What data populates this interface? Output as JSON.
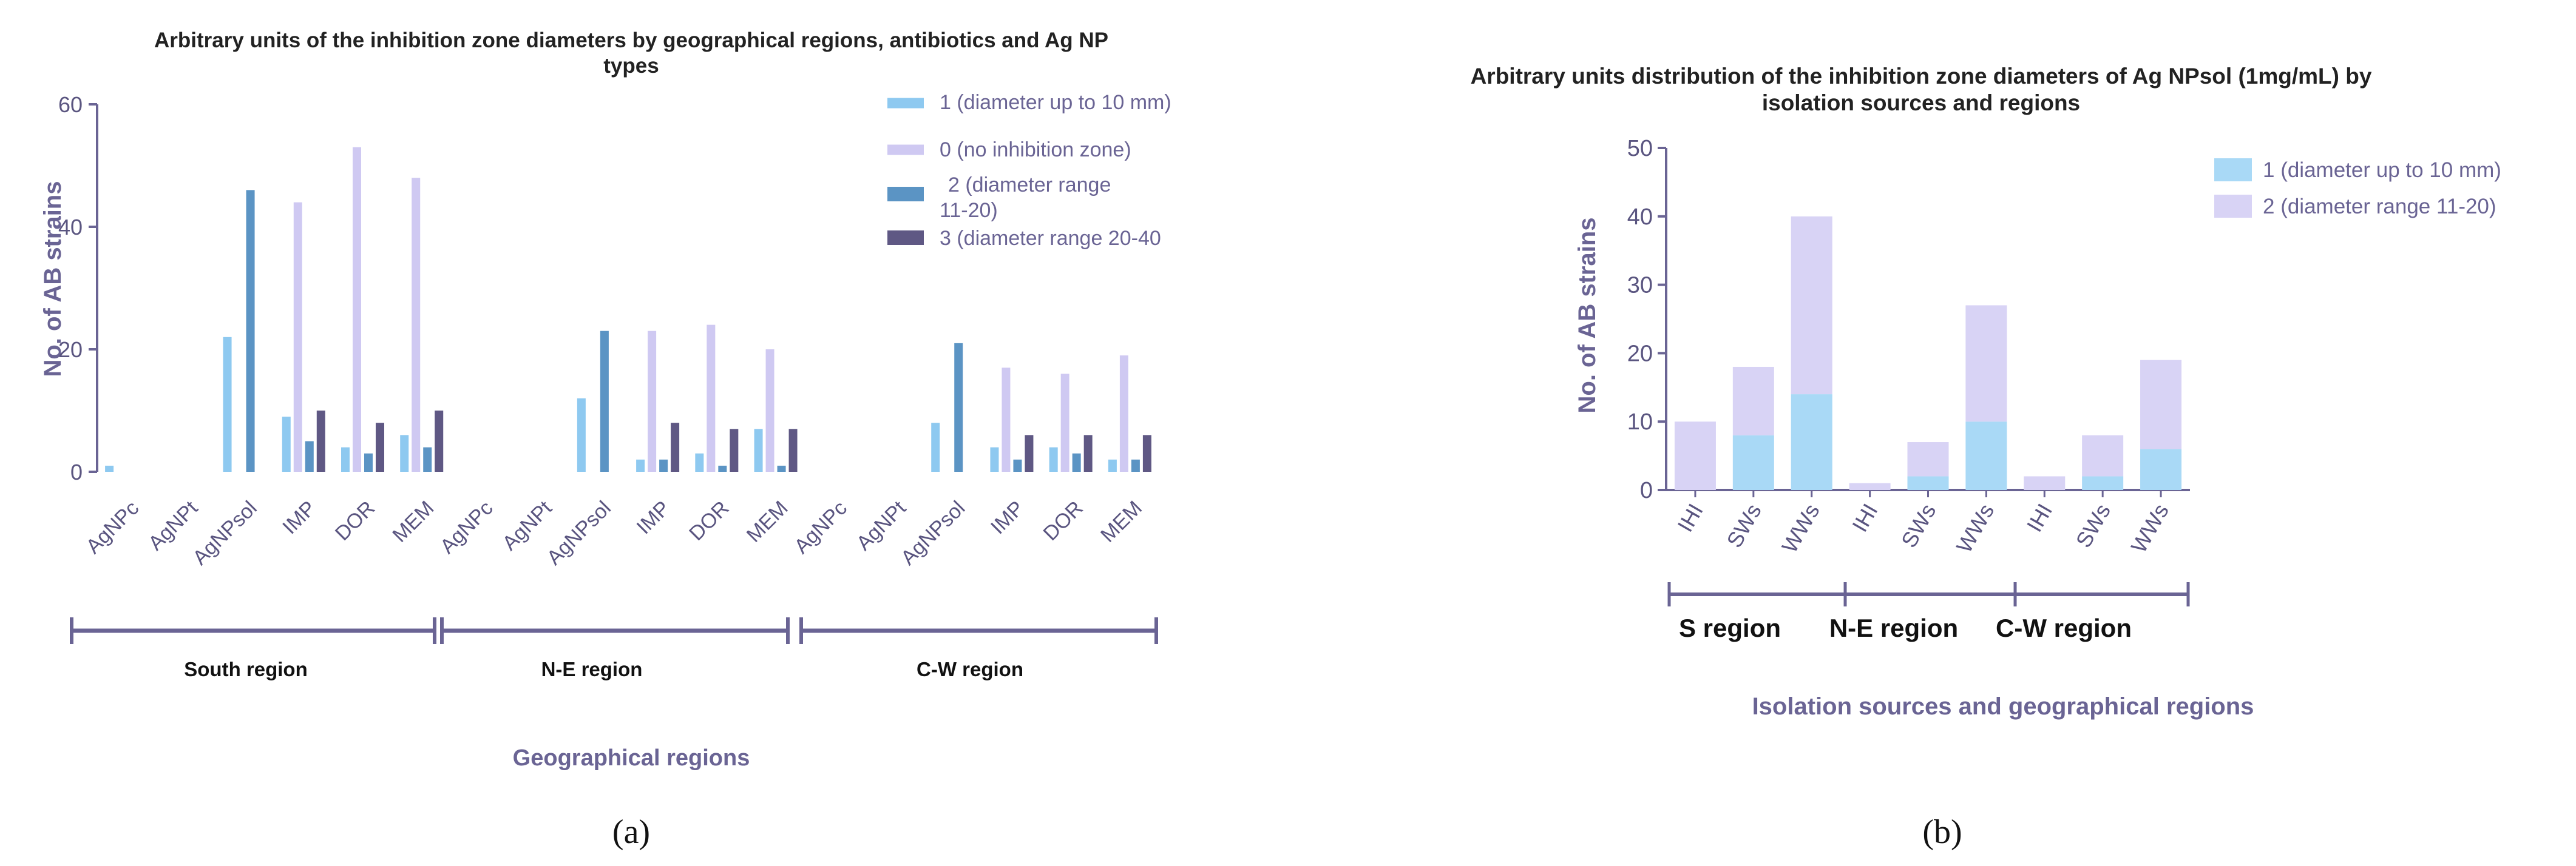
{
  "chart_data": [
    {
      "type": "bar",
      "panel_label": "(a)",
      "title_lines": [
        "Arbitrary units of the inhibition zone diameters by geographical regions, antibiotics and Ag NP",
        "types"
      ],
      "xlabel": "Geographical regions",
      "ylabel": "No. of AB strains",
      "ylim": [
        0,
        60
      ],
      "yticks": [
        0,
        20,
        40,
        60
      ],
      "legend_position": "top-right",
      "categories": [
        "AgNPc",
        "AgNPt",
        "AgNPsol",
        "IMP",
        "DOR",
        "MEM",
        "AgNPc",
        "AgNPt",
        "AgNPsol",
        "IMP",
        "DOR",
        "MEM",
        "AgNPc",
        "AgNPt",
        "AgNPsol",
        "IMP",
        "DOR",
        "MEM"
      ],
      "groups": [
        "South region",
        "N-E region",
        "C-W region"
      ],
      "series": [
        {
          "name": "1 (diameter up to 10 mm)",
          "color": "#8ec9f0",
          "values": [
            1,
            0,
            22,
            9,
            4,
            6,
            0,
            0,
            12,
            2,
            3,
            7,
            0,
            0,
            8,
            4,
            4,
            2
          ]
        },
        {
          "name": "0 (no inhibition zone)",
          "color": "#cfc9f2",
          "values": [
            0,
            0,
            0,
            44,
            53,
            48,
            0,
            0,
            0,
            23,
            24,
            20,
            0,
            0,
            0,
            17,
            16,
            19
          ]
        },
        {
          "name": "2 (diameter range 11-20)",
          "color": "#5b94c4",
          "values": [
            0,
            0,
            46,
            5,
            3,
            4,
            0,
            0,
            23,
            2,
            1,
            1,
            0,
            0,
            21,
            2,
            3,
            2
          ]
        },
        {
          "name": "3 (diameter range 20-40",
          "color": "#5f5884",
          "values": [
            0,
            0,
            0,
            10,
            8,
            10,
            0,
            0,
            0,
            8,
            7,
            7,
            0,
            0,
            0,
            6,
            6,
            6
          ]
        }
      ]
    },
    {
      "type": "bar",
      "stacked": true,
      "panel_label": "(b)",
      "title_lines": [
        "Arbitrary units distribution of the inhibition zone diameters of Ag NPsol (1mg/mL) by",
        "isolation sources and regions"
      ],
      "xlabel": "Isolation sources and geographical regions",
      "ylabel": "No. of AB strains",
      "ylim": [
        0,
        50
      ],
      "yticks": [
        0,
        10,
        20,
        30,
        40,
        50
      ],
      "legend_position": "top-right",
      "categories": [
        "IHI",
        "SWs",
        "WWs",
        "IHI",
        "SWs",
        "WWs",
        "IHI",
        "SWs",
        "WWs"
      ],
      "groups": [
        "S region",
        "N-E region",
        "C-W region"
      ],
      "series": [
        {
          "name": "1 (diameter up to 10 mm)",
          "color": "#a9d9f6",
          "values": [
            0,
            8,
            14,
            0,
            2,
            10,
            0,
            2,
            6
          ]
        },
        {
          "name": "2 (diameter range 11-20)",
          "color": "#d8d3f5",
          "values": [
            10,
            10,
            26,
            1,
            5,
            17,
            2,
            6,
            13
          ]
        }
      ]
    }
  ]
}
